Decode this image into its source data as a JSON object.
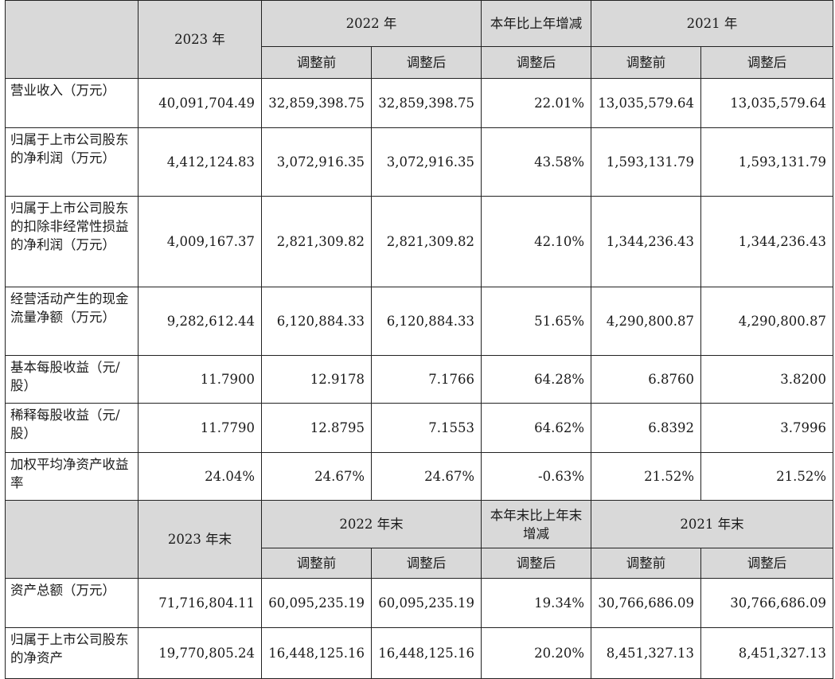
{
  "header1": {
    "year_2023": "2023 年",
    "year_2022": "2022 年",
    "change": "本年比上年增减",
    "year_2021": "2021 年",
    "before": "调整前",
    "after": "调整后"
  },
  "rows1": [
    {
      "label": "营业收入（万元）",
      "values": [
        "40,091,704.49",
        "32,859,398.75",
        "32,859,398.75",
        "22.01%",
        "13,035,579.64",
        "13,035,579.64"
      ]
    },
    {
      "label": "归属于上市公司股东的净利润（万元）",
      "values": [
        "4,412,124.83",
        "3,072,916.35",
        "3,072,916.35",
        "43.58%",
        "1,593,131.79",
        "1,593,131.79"
      ]
    },
    {
      "label": "归属于上市公司股东的扣除非经常性损益的净利润（万元）",
      "values": [
        "4,009,167.37",
        "2,821,309.82",
        "2,821,309.82",
        "42.10%",
        "1,344,236.43",
        "1,344,236.43"
      ]
    },
    {
      "label": "经营活动产生的现金流量净额（万元）",
      "values": [
        "9,282,612.44",
        "6,120,884.33",
        "6,120,884.33",
        "51.65%",
        "4,290,800.87",
        "4,290,800.87"
      ]
    },
    {
      "label": "基本每股收益（元/股）",
      "values": [
        "11.7900",
        "12.9178",
        "7.1766",
        "64.28%",
        "6.8760",
        "3.8200"
      ]
    },
    {
      "label": "稀释每股收益（元/股）",
      "values": [
        "11.7790",
        "12.8795",
        "7.1553",
        "64.62%",
        "6.8392",
        "3.7996"
      ]
    },
    {
      "label": "加权平均净资产收益率",
      "values": [
        "24.04%",
        "24.67%",
        "24.67%",
        "-0.63%",
        "21.52%",
        "21.52%"
      ]
    }
  ],
  "header2": {
    "year_2023": "2023 年末",
    "year_2022": "2022 年末",
    "change": "本年末比上年末增减",
    "year_2021": "2021 年末",
    "before": "调整前",
    "after": "调整后"
  },
  "rows2": [
    {
      "label": "资产总额（万元）",
      "values": [
        "71,716,804.11",
        "60,095,235.19",
        "60,095,235.19",
        "19.34%",
        "30,766,686.09",
        "30,766,686.09"
      ]
    },
    {
      "label": "归属于上市公司股东的净资产",
      "values": [
        "19,770,805.24",
        "16,448,125.16",
        "16,448,125.16",
        "20.20%",
        "8,451,327.13",
        "8,451,327.13"
      ]
    }
  ]
}
